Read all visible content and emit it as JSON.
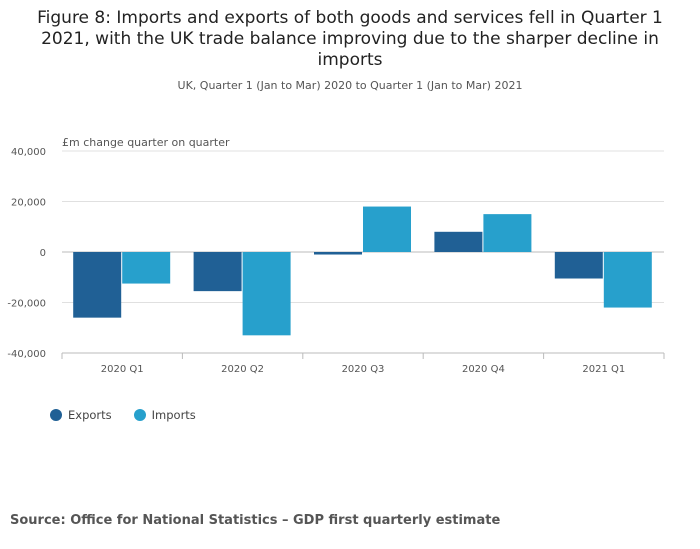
{
  "title": "Figure 8: Imports and exports of both goods and services fell in Quarter 1 2021, with the UK trade balance improving due to the sharper decline in imports",
  "subtitle": "UK, Quarter 1 (Jan to Mar) 2020 to Quarter 1 (Jan to Mar) 2021",
  "source": "Source: Office for National Statistics – GDP first quarterly estimate",
  "colors": {
    "exports": "#206095",
    "imports": "#27a0cc",
    "grid": "#e0e0e0",
    "axis": "#bbbbbb"
  },
  "chart_data": {
    "type": "bar",
    "categories": [
      "2020 Q1",
      "2020 Q2",
      "2020 Q3",
      "2020 Q4",
      "2021 Q1"
    ],
    "series": [
      {
        "name": "Exports",
        "values": [
          -26000,
          -15500,
          -1000,
          8000,
          -10500
        ]
      },
      {
        "name": "Imports",
        "values": [
          -12500,
          -33000,
          18000,
          15000,
          -22000
        ]
      }
    ],
    "ylabel": "£m change quarter on quarter",
    "ylim": [
      -40000,
      40000
    ],
    "yticks": [
      40000,
      20000,
      0,
      -20000,
      -40000
    ],
    "ytick_labels": [
      "40,000",
      "20,000",
      "0",
      "-20,000",
      "-40,000"
    ],
    "grid": true,
    "legend": "bottom-left"
  }
}
